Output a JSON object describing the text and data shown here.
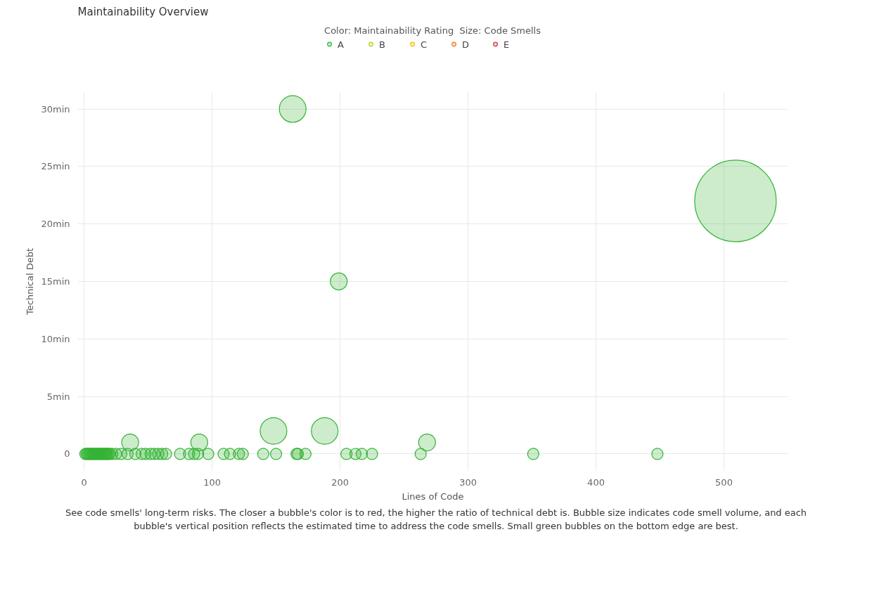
{
  "chart_data": {
    "type": "bubble",
    "title": "Maintainability Overview",
    "legend_title": "Color: Maintainability Rating  Size: Code Smells",
    "xlabel": "Lines of Code",
    "ylabel": "Technical Debt",
    "xlim": [
      -5,
      550
    ],
    "xticks": [
      0,
      100,
      200,
      300,
      400,
      500
    ],
    "ylim": [
      -1.5,
      31.5
    ],
    "yticks": [
      {
        "value": 0,
        "label": "0"
      },
      {
        "value": 5,
        "label": "5min"
      },
      {
        "value": 10,
        "label": "10min"
      },
      {
        "value": 15,
        "label": "15min"
      },
      {
        "value": 20,
        "label": "20min"
      },
      {
        "value": 25,
        "label": "25min"
      },
      {
        "value": 30,
        "label": "30min"
      }
    ],
    "grid": true,
    "legend": "top",
    "marker": "circle",
    "series": [
      {
        "name": "A",
        "color": "#33b233",
        "x": [
          163,
          509,
          199,
          148,
          188,
          36,
          90,
          268,
          1,
          2,
          3,
          4,
          5,
          6,
          7,
          8,
          9,
          10,
          11,
          12,
          13,
          14,
          15,
          16,
          17,
          18,
          19,
          20,
          22,
          25,
          29,
          34,
          40,
          45,
          48,
          52,
          55,
          58,
          61,
          64,
          75,
          82,
          86,
          89,
          97,
          109,
          114,
          121,
          124,
          140,
          150,
          166,
          167,
          173,
          205,
          212,
          217,
          225,
          263,
          351,
          448
        ],
        "values": [
          30,
          22,
          15,
          2,
          2,
          1,
          1,
          1,
          0,
          0,
          0,
          0,
          0,
          0,
          0,
          0,
          0,
          0,
          0,
          0,
          0,
          0,
          0,
          0,
          0,
          0,
          0,
          0,
          0,
          0,
          0,
          0,
          0,
          0,
          0,
          0,
          0,
          0,
          0,
          0,
          0,
          0,
          0,
          0,
          0,
          0,
          0,
          0,
          0,
          0,
          0,
          0,
          0,
          0,
          0,
          0,
          0,
          0,
          0,
          0,
          0
        ],
        "sizes": [
          0.107,
          1,
          0.043,
          0.107,
          0.107,
          0.043,
          0.043,
          0.043,
          0.019,
          0.019,
          0.019,
          0.019,
          0.019,
          0.019,
          0.019,
          0.019,
          0.019,
          0.019,
          0.019,
          0.019,
          0.019,
          0.019,
          0.019,
          0.019,
          0.019,
          0.019,
          0.019,
          0.019,
          0.019,
          0.019,
          0.019,
          0.019,
          0.019,
          0.019,
          0.019,
          0.019,
          0.019,
          0.019,
          0.019,
          0.019,
          0.019,
          0.019,
          0.019,
          0.019,
          0.019,
          0.019,
          0.019,
          0.019,
          0.019,
          0.019,
          0.019,
          0.019,
          0.019,
          0.019,
          0.019,
          0.019,
          0.019,
          0.019,
          0.019,
          0.019,
          0.019
        ]
      },
      {
        "name": "B",
        "color": "#b0d513"
      },
      {
        "name": "C",
        "color": "#eabe06"
      },
      {
        "name": "D",
        "color": "#ed7d20"
      },
      {
        "name": "E",
        "color": "#d4333f"
      }
    ],
    "annotations": [
      "See code smells' long-term risks. The closer a bubble's color is to red, the higher the ratio of technical debt is. Bubble size indicates code smell volume, and each bubble's vertical position reflects the estimated time to address the code smells. Small green bubbles on the bottom edge are best."
    ]
  }
}
